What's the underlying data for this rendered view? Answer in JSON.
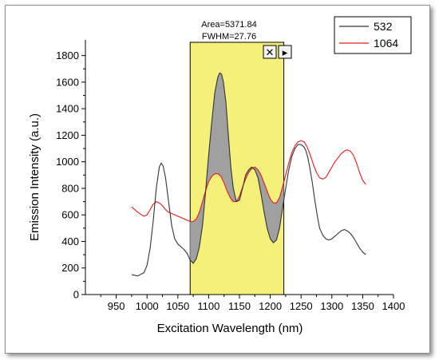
{
  "chart_data": {
    "type": "line",
    "xlabel": "Excitation Wavelength (nm)",
    "ylabel": "Emission Intensity (a.u.)",
    "xlim": [
      900,
      1400
    ],
    "ylim": [
      0,
      1900
    ],
    "x_ticks": [
      950,
      1000,
      1050,
      1100,
      1150,
      1200,
      1250,
      1300,
      1350,
      1400
    ],
    "y_ticks": [
      0,
      200,
      400,
      600,
      800,
      1000,
      1200,
      1400,
      1600,
      1800
    ],
    "grid": false,
    "legend_placement": "top-right",
    "series": [
      {
        "name": "532",
        "color": "#333333",
        "x": [
          975,
          985,
          995,
          1000,
          1005,
          1010,
          1015,
          1020,
          1023,
          1026,
          1030,
          1035,
          1040,
          1045,
          1050,
          1055,
          1060,
          1065,
          1070,
          1075,
          1080,
          1085,
          1090,
          1095,
          1100,
          1105,
          1110,
          1115,
          1118,
          1121,
          1124,
          1128,
          1132,
          1136,
          1140,
          1145,
          1150,
          1155,
          1160,
          1165,
          1170,
          1175,
          1180,
          1185,
          1190,
          1195,
          1200,
          1205,
          1210,
          1215,
          1220,
          1225,
          1230,
          1235,
          1240,
          1245,
          1250,
          1255,
          1258,
          1261,
          1264,
          1268,
          1272,
          1276,
          1280,
          1285,
          1290,
          1295,
          1300,
          1305,
          1310,
          1315,
          1320,
          1325,
          1330,
          1335,
          1340,
          1345,
          1350,
          1355
        ],
        "y": [
          150,
          140,
          165,
          220,
          350,
          550,
          800,
          960,
          990,
          970,
          880,
          700,
          520,
          420,
          380,
          360,
          340,
          310,
          260,
          235,
          270,
          360,
          520,
          770,
          1050,
          1300,
          1520,
          1640,
          1670,
          1660,
          1600,
          1450,
          1200,
          960,
          800,
          700,
          710,
          800,
          900,
          940,
          960,
          940,
          880,
          760,
          620,
          500,
          420,
          390,
          410,
          500,
          650,
          800,
          940,
          1040,
          1100,
          1130,
          1130,
          1110,
          1080,
          1030,
          960,
          850,
          720,
          600,
          500,
          450,
          420,
          410,
          420,
          440,
          460,
          480,
          490,
          480,
          460,
          430,
          390,
          350,
          320,
          300
        ]
      },
      {
        "name": "1064",
        "color": "#e41a1c",
        "x": [
          975,
          985,
          995,
          1000,
          1005,
          1010,
          1015,
          1020,
          1025,
          1030,
          1035,
          1040,
          1045,
          1050,
          1055,
          1060,
          1065,
          1070,
          1075,
          1080,
          1085,
          1090,
          1095,
          1100,
          1105,
          1110,
          1115,
          1120,
          1125,
          1130,
          1135,
          1140,
          1145,
          1150,
          1155,
          1160,
          1165,
          1170,
          1175,
          1180,
          1185,
          1190,
          1195,
          1200,
          1205,
          1210,
          1215,
          1220,
          1225,
          1230,
          1235,
          1240,
          1245,
          1250,
          1255,
          1260,
          1265,
          1270,
          1275,
          1280,
          1285,
          1290,
          1295,
          1300,
          1305,
          1310,
          1315,
          1320,
          1325,
          1330,
          1335,
          1340,
          1345,
          1350,
          1355
        ],
        "y": [
          660,
          620,
          590,
          600,
          640,
          680,
          700,
          690,
          670,
          640,
          620,
          610,
          600,
          590,
          580,
          570,
          560,
          550,
          550,
          570,
          620,
          700,
          780,
          850,
          890,
          910,
          910,
          890,
          840,
          780,
          730,
          700,
          700,
          740,
          810,
          870,
          920,
          950,
          960,
          940,
          900,
          840,
          780,
          720,
          690,
          690,
          730,
          810,
          900,
          990,
          1070,
          1120,
          1150,
          1160,
          1150,
          1110,
          1050,
          980,
          920,
          880,
          870,
          880,
          920,
          960,
          1000,
          1030,
          1060,
          1080,
          1090,
          1080,
          1050,
          990,
          920,
          860,
          830
        ]
      }
    ],
    "highlight_region": {
      "x_range": [
        1070,
        1222
      ],
      "fill_color": "#f5f07a",
      "shaded_area_color": "#a0a0a0",
      "area_label": "Area=5371.84",
      "fwhm_label": "FWHM=27.76"
    }
  },
  "buttons": {
    "close_symbol": "✕",
    "next_symbol": "▸"
  }
}
